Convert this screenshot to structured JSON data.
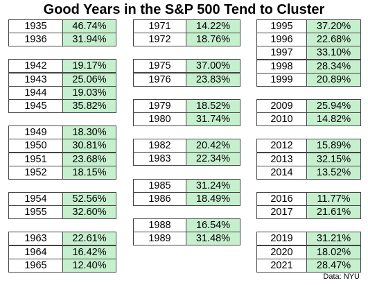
{
  "title": "Good Years in the S&P 500 Tend to Cluster",
  "columns": [
    {
      "groups": [
        {
          "rows": [
            [
              "1935",
              "46.74%"
            ],
            [
              "1936",
              "31.94%"
            ]
          ]
        },
        {
          "rows": [
            [
              "1942",
              "19.17%"
            ],
            [
              "1943",
              "25.06%"
            ],
            [
              "1944",
              "19.03%"
            ],
            [
              "1945",
              "35.82%"
            ]
          ]
        },
        {
          "rows": [
            [
              "1949",
              "18.30%"
            ],
            [
              "1950",
              "30.81%"
            ],
            [
              "1951",
              "23.68%"
            ],
            [
              "1952",
              "18.15%"
            ]
          ]
        },
        {
          "rows": [
            [
              "1954",
              "52.56%"
            ],
            [
              "1955",
              "32.60%"
            ]
          ]
        },
        {
          "rows": [
            [
              "1963",
              "22.61%"
            ],
            [
              "1964",
              "16.42%"
            ],
            [
              "1965",
              "12.40%"
            ]
          ]
        }
      ]
    },
    {
      "groups": [
        {
          "rows": [
            [
              "1971",
              "14.22%"
            ],
            [
              "1972",
              "18.76%"
            ]
          ]
        },
        {
          "rows": [
            [
              "1975",
              "37.00%"
            ],
            [
              "1976",
              "23.83%"
            ]
          ]
        },
        {
          "rows": [
            [
              "1979",
              "18.52%"
            ],
            [
              "1980",
              "31.74%"
            ]
          ]
        },
        {
          "rows": [
            [
              "1982",
              "20.42%"
            ],
            [
              "1983",
              "22.34%"
            ]
          ]
        },
        {
          "rows": [
            [
              "1985",
              "31.24%"
            ],
            [
              "1986",
              "18.49%"
            ]
          ]
        },
        {
          "rows": [
            [
              "1988",
              "16.54%"
            ],
            [
              "1989",
              "31.48%"
            ]
          ]
        }
      ]
    },
    {
      "groups": [
        {
          "rows": [
            [
              "1995",
              "37.20%"
            ],
            [
              "1996",
              "22.68%"
            ],
            [
              "1997",
              "33.10%"
            ],
            [
              "1998",
              "28.34%"
            ],
            [
              "1999",
              "20.89%"
            ]
          ]
        },
        {
          "rows": [
            [
              "2009",
              "25.94%"
            ],
            [
              "2010",
              "14.82%"
            ]
          ]
        },
        {
          "rows": [
            [
              "2012",
              "15.89%"
            ],
            [
              "2013",
              "32.15%"
            ],
            [
              "2014",
              "13.52%"
            ]
          ]
        },
        {
          "rows": [
            [
              "2016",
              "11.77%"
            ],
            [
              "2017",
              "21.61%"
            ]
          ]
        },
        {
          "rows": [
            [
              "2019",
              "31.21%"
            ],
            [
              "2020",
              "18.02%"
            ],
            [
              "2021",
              "28.47%"
            ]
          ]
        }
      ]
    }
  ],
  "source": "Data: NYU"
}
